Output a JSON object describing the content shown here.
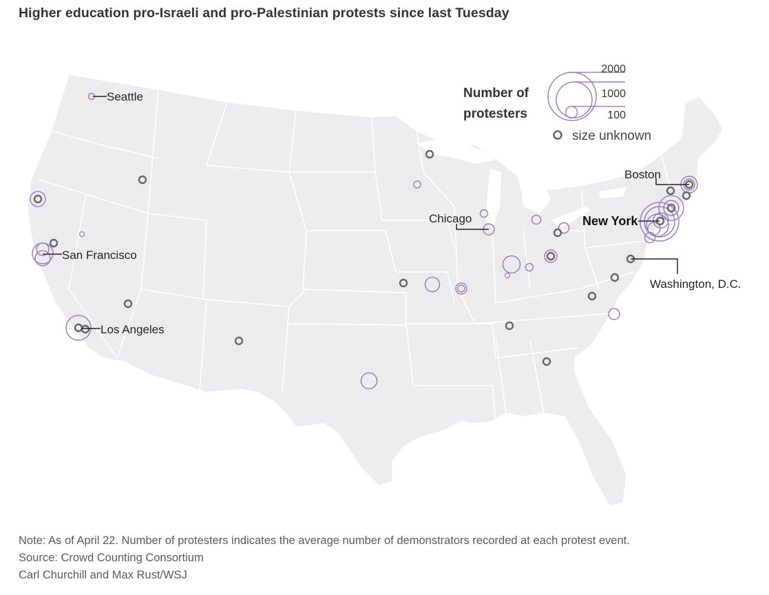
{
  "title": "Higher education pro-Israeli and pro-Palestinian protests since last Tuesday",
  "legend": {
    "title_line1": "Number of",
    "title_line2": "protesters",
    "sizes": [
      {
        "label": "2000",
        "value": 2000
      },
      {
        "label": "1000",
        "value": 1000
      },
      {
        "label": "100",
        "value": 100
      }
    ],
    "unknown_label": "size unknown"
  },
  "cities": [
    {
      "name": "Seattle",
      "bold": false
    },
    {
      "name": "San Francisco",
      "bold": false
    },
    {
      "name": "Los Angeles",
      "bold": false
    },
    {
      "name": "Chicago",
      "bold": false
    },
    {
      "name": "Boston",
      "bold": false
    },
    {
      "name": "New York",
      "bold": true
    },
    {
      "name": "Washington, D.C.",
      "bold": false
    }
  ],
  "colors": {
    "known_size": "#9b7fbf",
    "unknown_size": "#666666",
    "land": "#ececee"
  },
  "notes": {
    "note": "Note: As of April 22. Number of protesters indicates the average number of demonstrators recorded at each protest event.",
    "source": "Source: Crowd Counting Consortium",
    "credit": "Carl Churchill and Max Rust/WSJ"
  }
}
